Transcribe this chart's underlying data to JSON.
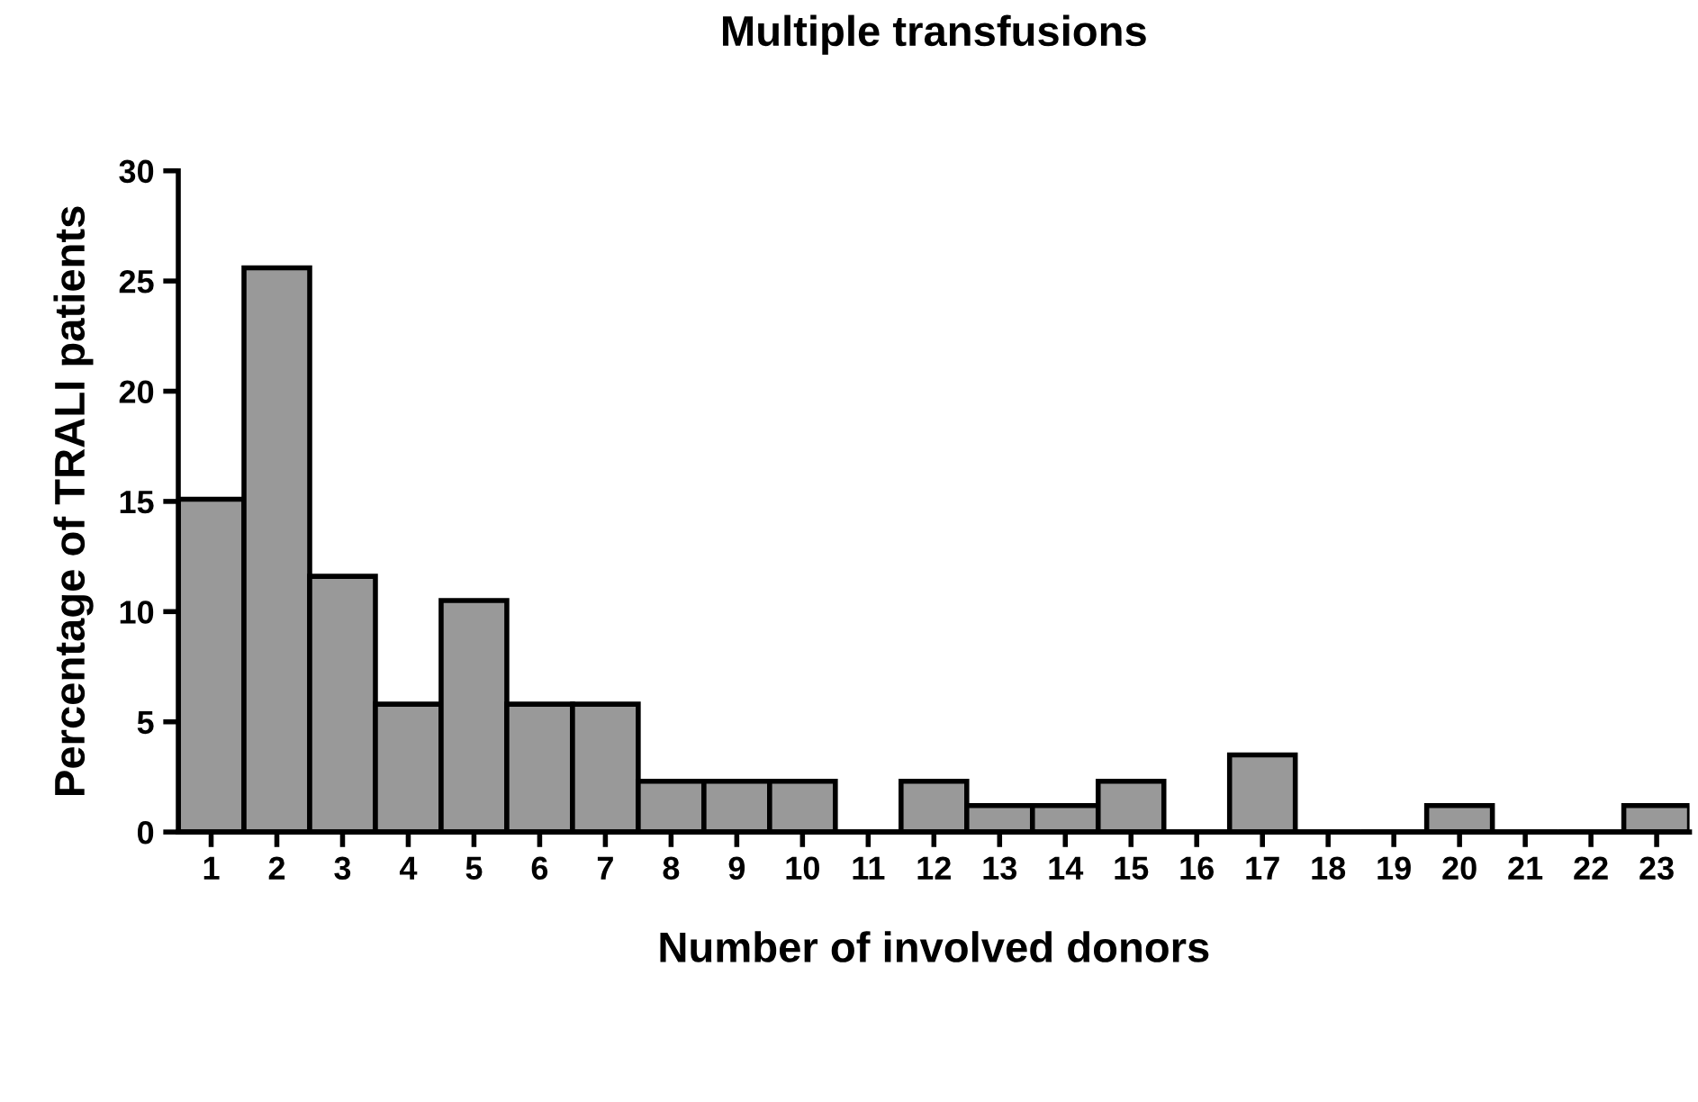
{
  "chart_data": {
    "type": "bar",
    "title": "Multiple transfusions",
    "xlabel": "Number of involved donors",
    "ylabel": "Percentage of TRALI patients",
    "categories": [
      "1",
      "2",
      "3",
      "4",
      "5",
      "6",
      "7",
      "8",
      "9",
      "10",
      "11",
      "12",
      "13",
      "14",
      "15",
      "16",
      "17",
      "18",
      "19",
      "20",
      "21",
      "22",
      "23"
    ],
    "values": [
      15.1,
      25.6,
      11.6,
      5.8,
      10.5,
      5.8,
      5.8,
      2.3,
      2.3,
      2.3,
      0,
      2.3,
      1.2,
      1.2,
      2.3,
      0,
      3.5,
      0,
      0,
      1.2,
      0,
      0,
      1.2
    ],
    "color": "#999999",
    "ylim": [
      0,
      30
    ],
    "yticks": [
      0,
      5,
      10,
      15,
      20,
      25,
      30
    ],
    "grid": false,
    "legend": false
  }
}
